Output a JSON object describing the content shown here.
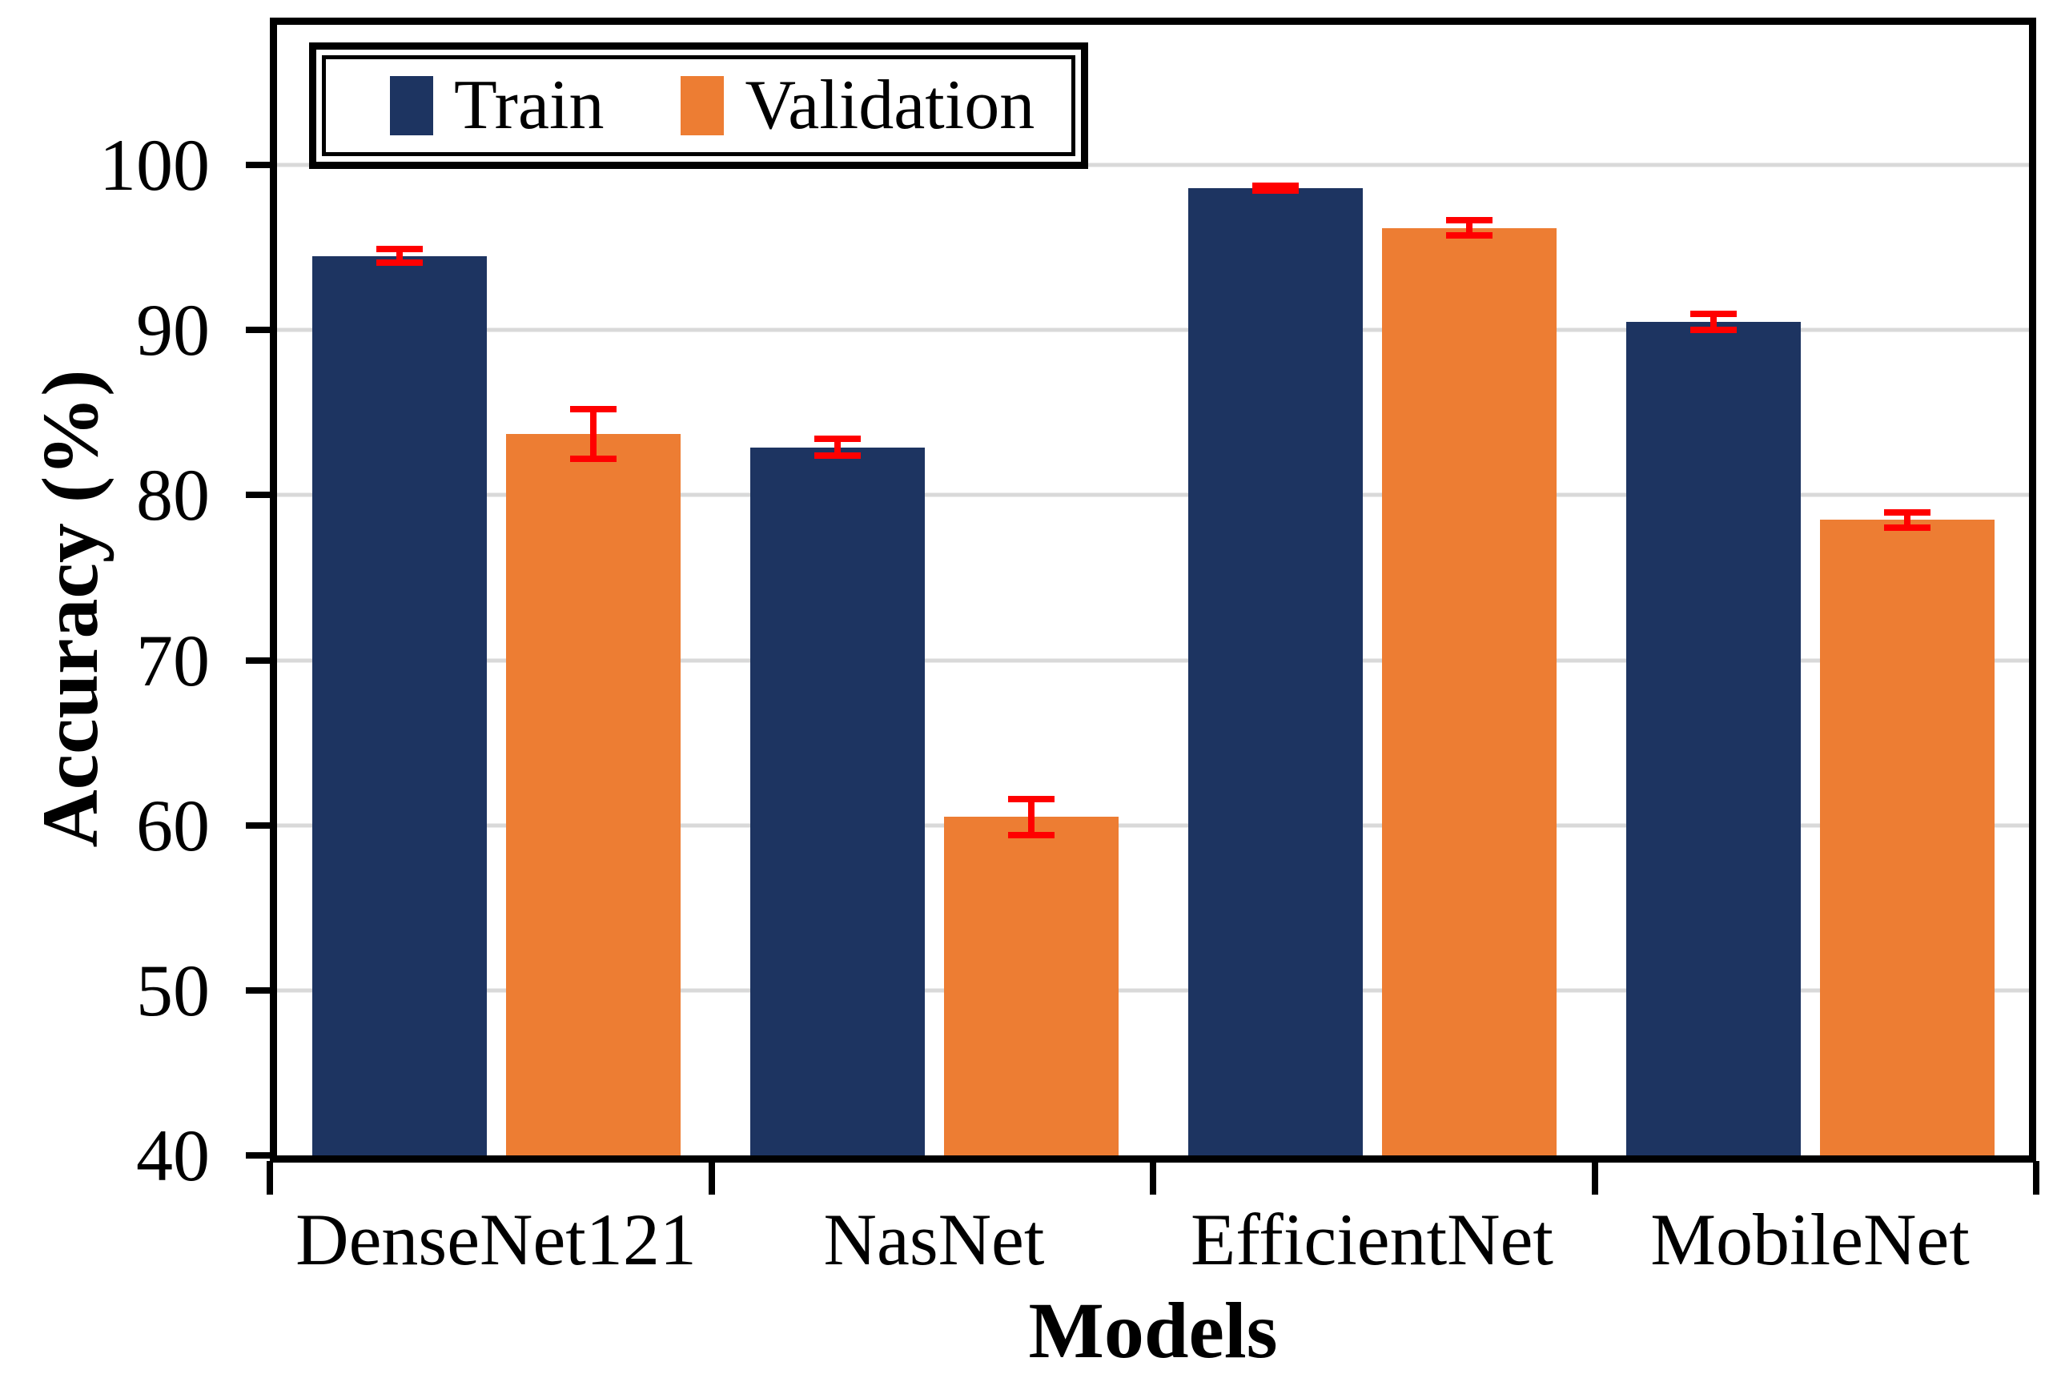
{
  "chart_data": {
    "type": "bar",
    "title": "",
    "categories": [
      "DenseNet121",
      "NasNet",
      "EfficientNet",
      "MobileNet"
    ],
    "series": [
      {
        "name": "Train",
        "color": "#1d3461",
        "values": [
          94.5,
          82.9,
          98.6,
          90.5
        ],
        "errors": [
          0.4,
          0.5,
          0.15,
          0.5
        ]
      },
      {
        "name": "Validation",
        "color": "#ed7d33",
        "values": [
          83.7,
          60.5,
          96.2,
          78.5
        ],
        "errors": [
          1.5,
          1.1,
          0.45,
          0.45
        ]
      }
    ],
    "xlabel": "Models",
    "ylabel": "Accuracy (%)",
    "ylim": [
      40,
      100
    ],
    "y_axis_render_max": 108.5,
    "yticks": [
      40,
      50,
      60,
      70,
      80,
      90,
      100
    ],
    "gridlines": [
      50,
      60,
      70,
      80,
      90,
      100
    ],
    "grid": "on",
    "legend_position": "top-left",
    "error_color": "#ff0000",
    "gridline_color": "#d9d9d9",
    "axis_color": "#000000"
  }
}
